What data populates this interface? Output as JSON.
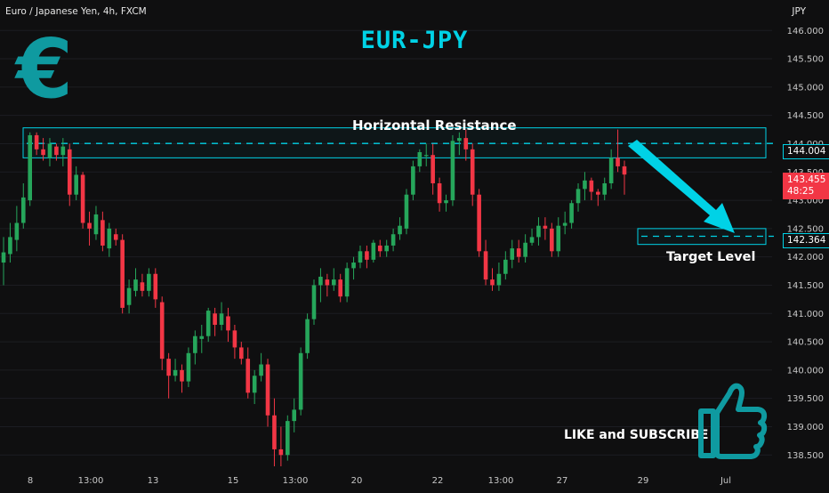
{
  "header": {
    "instrument": "Euro / Japanese Yen, 4h, FXCM",
    "unit": "JPY"
  },
  "title": "EUR-JPY",
  "euro_symbol": "€",
  "labels": {
    "resistance": "Horizontal Resistance",
    "target": "Target Level",
    "like_subscribe": "LIKE and SUBSCRIBE"
  },
  "price_chips": {
    "resistance": "144.004",
    "target": "142.364",
    "last_price": "143.455",
    "countdown": "48:25"
  },
  "colors": {
    "background": "#0f0f10",
    "up": "#26a65b",
    "down": "#f23645",
    "accent": "#00d2e6",
    "euro": "#0f9aa0"
  },
  "icons": {
    "thumb": "thumbs-up-icon",
    "arrow": "down-arrow-icon"
  },
  "chart_data": {
    "type": "candlestick",
    "timeframe": "4h",
    "ylim": [
      138.3,
      146.35
    ],
    "y_ticks": [
      "146.000",
      "145.500",
      "145.000",
      "144.500",
      "144.000",
      "143.500",
      "143.000",
      "142.500",
      "142.000",
      "141.500",
      "141.000",
      "140.500",
      "140.000",
      "139.500",
      "139.000",
      "138.500"
    ],
    "x_ticks": [
      "8",
      "13:00",
      "13",
      "15",
      "13:00",
      "20",
      "22",
      "13:00",
      "27",
      "29",
      "Jul"
    ],
    "annotations": [
      {
        "text": "Horizontal Resistance",
        "level": 144.004,
        "zone": [
          143.75,
          144.28
        ]
      },
      {
        "text": "Target Level",
        "level": 142.364,
        "zone": [
          142.22,
          142.5
        ]
      }
    ],
    "candles": [
      [
        141.9,
        142.08,
        141.5,
        142.35
      ],
      [
        142.05,
        142.35,
        141.9,
        142.6
      ],
      [
        142.3,
        142.6,
        142.1,
        142.9
      ],
      [
        142.6,
        143.05,
        142.5,
        143.3
      ],
      [
        143.0,
        144.15,
        142.9,
        144.2
      ],
      [
        144.15,
        143.9,
        143.8,
        144.2
      ],
      [
        143.9,
        143.8,
        143.7,
        144.1
      ],
      [
        143.75,
        144.0,
        143.6,
        144.1
      ],
      [
        143.95,
        143.8,
        143.7,
        144.0
      ],
      [
        143.8,
        143.95,
        143.6,
        144.1
      ],
      [
        143.9,
        143.1,
        142.9,
        144.0
      ],
      [
        143.1,
        143.45,
        143.0,
        143.6
      ],
      [
        143.45,
        142.6,
        142.5,
        143.5
      ],
      [
        142.6,
        142.5,
        142.2,
        142.8
      ],
      [
        142.4,
        142.75,
        142.3,
        142.9
      ],
      [
        142.65,
        142.2,
        142.1,
        142.8
      ],
      [
        142.15,
        142.5,
        142.0,
        142.6
      ],
      [
        142.4,
        142.3,
        142.2,
        142.5
      ],
      [
        142.3,
        141.1,
        141.0,
        142.4
      ],
      [
        141.15,
        141.45,
        141.0,
        141.6
      ],
      [
        141.4,
        141.6,
        141.3,
        141.8
      ],
      [
        141.55,
        141.4,
        141.3,
        141.7
      ],
      [
        141.4,
        141.7,
        141.3,
        141.8
      ],
      [
        141.7,
        141.25,
        141.1,
        141.8
      ],
      [
        141.2,
        140.2,
        140.0,
        141.3
      ],
      [
        140.2,
        139.9,
        139.5,
        140.3
      ],
      [
        139.9,
        140.0,
        139.8,
        140.2
      ],
      [
        140.0,
        139.8,
        139.6,
        140.1
      ],
      [
        139.8,
        140.3,
        139.7,
        140.4
      ],
      [
        140.3,
        140.6,
        140.1,
        140.7
      ],
      [
        140.55,
        140.6,
        140.3,
        140.8
      ],
      [
        140.6,
        141.05,
        140.5,
        141.1
      ],
      [
        141.0,
        140.8,
        140.6,
        141.1
      ],
      [
        140.8,
        141.0,
        140.7,
        141.2
      ],
      [
        140.95,
        140.7,
        140.5,
        141.1
      ],
      [
        140.7,
        140.4,
        140.2,
        140.8
      ],
      [
        140.4,
        140.2,
        140.1,
        140.5
      ],
      [
        140.2,
        139.6,
        139.5,
        140.4
      ],
      [
        139.6,
        139.9,
        139.4,
        140.0
      ],
      [
        139.9,
        140.1,
        139.8,
        140.3
      ],
      [
        140.1,
        139.2,
        139.0,
        140.2
      ],
      [
        139.2,
        138.6,
        138.3,
        139.5
      ],
      [
        138.6,
        138.5,
        138.3,
        139.0
      ],
      [
        138.5,
        139.1,
        138.4,
        139.2
      ],
      [
        139.1,
        139.3,
        138.9,
        139.5
      ],
      [
        139.3,
        140.3,
        139.2,
        140.4
      ],
      [
        140.3,
        140.9,
        140.2,
        141.0
      ],
      [
        140.9,
        141.5,
        140.8,
        141.6
      ],
      [
        141.5,
        141.65,
        141.2,
        141.8
      ],
      [
        141.6,
        141.5,
        141.3,
        141.7
      ],
      [
        141.5,
        141.6,
        141.4,
        141.8
      ],
      [
        141.6,
        141.3,
        141.2,
        141.7
      ],
      [
        141.3,
        141.8,
        141.2,
        141.9
      ],
      [
        141.8,
        141.9,
        141.6,
        142.0
      ],
      [
        141.9,
        142.1,
        141.8,
        142.2
      ],
      [
        142.1,
        141.95,
        141.8,
        142.2
      ],
      [
        141.95,
        142.25,
        141.9,
        142.3
      ],
      [
        142.2,
        142.1,
        142.0,
        142.3
      ],
      [
        142.1,
        142.2,
        142.0,
        142.3
      ],
      [
        142.2,
        142.4,
        142.1,
        142.5
      ],
      [
        142.4,
        142.55,
        142.3,
        142.7
      ],
      [
        142.5,
        143.1,
        142.4,
        143.2
      ],
      [
        143.1,
        143.6,
        143.0,
        143.7
      ],
      [
        143.6,
        143.85,
        143.5,
        143.9
      ],
      [
        143.8,
        143.8,
        143.6,
        144.0
      ],
      [
        143.8,
        143.3,
        143.1,
        144.0
      ],
      [
        143.3,
        142.95,
        142.8,
        143.4
      ],
      [
        142.95,
        143.0,
        142.8,
        143.1
      ],
      [
        143.0,
        144.05,
        142.9,
        144.15
      ],
      [
        144.05,
        144.1,
        143.8,
        144.2
      ],
      [
        144.1,
        143.9,
        143.7,
        144.25
      ],
      [
        143.9,
        143.1,
        142.9,
        144.0
      ],
      [
        143.1,
        142.1,
        142.0,
        143.2
      ],
      [
        142.1,
        141.6,
        141.5,
        142.3
      ],
      [
        141.6,
        141.5,
        141.4,
        141.8
      ],
      [
        141.5,
        141.7,
        141.4,
        141.9
      ],
      [
        141.7,
        141.95,
        141.6,
        142.1
      ],
      [
        141.95,
        142.15,
        141.8,
        142.3
      ],
      [
        142.15,
        142.0,
        141.9,
        142.3
      ],
      [
        142.0,
        142.25,
        141.9,
        142.4
      ],
      [
        142.25,
        142.35,
        142.2,
        142.5
      ],
      [
        142.35,
        142.55,
        142.2,
        142.7
      ],
      [
        142.55,
        142.5,
        142.3,
        142.7
      ],
      [
        142.5,
        142.1,
        142.0,
        142.6
      ],
      [
        142.1,
        142.55,
        142.0,
        142.7
      ],
      [
        142.55,
        142.6,
        142.4,
        142.8
      ],
      [
        142.6,
        142.95,
        142.5,
        143.0
      ],
      [
        142.95,
        143.2,
        142.8,
        143.3
      ],
      [
        143.2,
        143.35,
        143.0,
        143.5
      ],
      [
        143.35,
        143.15,
        143.0,
        143.4
      ],
      [
        143.15,
        143.1,
        142.9,
        143.2
      ],
      [
        143.1,
        143.3,
        143.0,
        143.4
      ],
      [
        143.3,
        143.75,
        143.2,
        143.9
      ],
      [
        143.75,
        143.6,
        143.5,
        144.25
      ],
      [
        143.6,
        143.455,
        143.1,
        143.7
      ]
    ]
  }
}
